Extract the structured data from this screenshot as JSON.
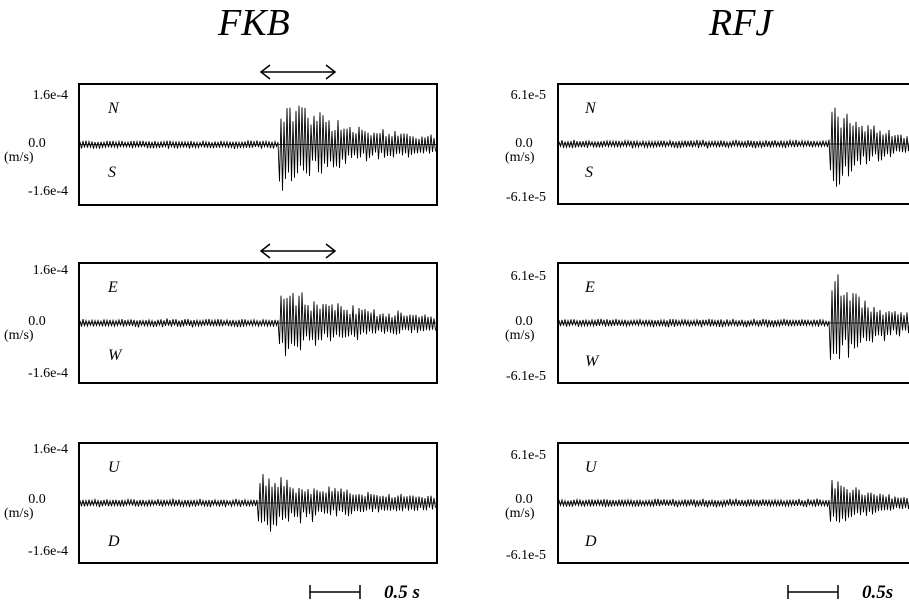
{
  "stations": [
    {
      "name": "FKB",
      "amplitude_max": "1.6e-4",
      "amplitude_zero": "0.0",
      "amplitude_min": "-1.6e-4",
      "unit": "(m/s)",
      "scale_label": "0.5 s"
    },
    {
      "name": "RFJ",
      "amplitude_max": "6.1e-5",
      "amplitude_zero": "0.0",
      "amplitude_min": "-6.1e-5",
      "unit": "(m/s)",
      "scale_label": "0.5s"
    }
  ],
  "components": [
    {
      "top_label": "N",
      "bottom_label": "S"
    },
    {
      "top_label": "E",
      "bottom_label": "W"
    },
    {
      "top_label": "U",
      "bottom_label": "D"
    }
  ],
  "chart_data": {
    "type": "line",
    "description_of_axes": "velocity seismograms, three components per station, time window marked by double arrow",
    "xlabel": "",
    "ylabel": "",
    "scale_bar_seconds": 0.5,
    "series": [
      {
        "station": "FKB",
        "component": "N-S",
        "ylim": [
          -0.00016,
          0.00016
        ],
        "onset_fraction": 0.56,
        "peak_fraction": 0.95
      },
      {
        "station": "FKB",
        "component": "E-W",
        "ylim": [
          -0.00016,
          0.00016
        ],
        "onset_fraction": 0.56,
        "peak_fraction": 0.75
      },
      {
        "station": "FKB",
        "component": "U-D",
        "ylim": [
          -0.00016,
          0.00016
        ],
        "onset_fraction": 0.5,
        "peak_fraction": 0.55
      },
      {
        "station": "RFJ",
        "component": "N-S",
        "ylim": [
          -6.1e-05,
          6.1e-05
        ],
        "onset_fraction": 0.76,
        "peak_fraction": 0.9
      },
      {
        "station": "RFJ",
        "component": "E-W",
        "ylim": [
          -6.1e-05,
          6.1e-05
        ],
        "onset_fraction": 0.76,
        "peak_fraction": 1.0
      },
      {
        "station": "RFJ",
        "component": "U-D",
        "ylim": [
          -6.1e-05,
          6.1e-05
        ],
        "onset_fraction": 0.76,
        "peak_fraction": 0.45
      }
    ],
    "window_arrow": {
      "station": "FKB",
      "components": [
        "N-S",
        "E-W"
      ]
    }
  }
}
